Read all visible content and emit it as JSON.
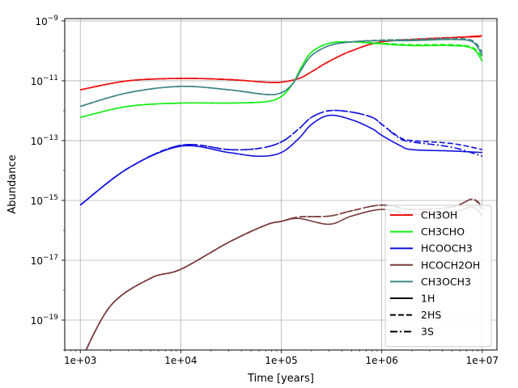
{
  "chart_data": {
    "type": "line",
    "title": "",
    "xlabel": "Time [years]",
    "ylabel": "Abundance",
    "xscale": "log",
    "yscale": "log",
    "xlim": [
      700,
      14000000
    ],
    "ylim": [
      1e-20,
      1.2e-09
    ],
    "grid": true,
    "legend_position": "bottom-right",
    "xticks": [
      {
        "value": 1000,
        "label": "1e+03"
      },
      {
        "value": 10000,
        "label": "1e+04"
      },
      {
        "value": 100000,
        "label": "1e+05"
      },
      {
        "value": 1000000,
        "label": "1e+06"
      },
      {
        "value": 10000000,
        "label": "1e+07"
      }
    ],
    "yticks": [
      {
        "value": 1e-19,
        "base": "10",
        "exp": "−19"
      },
      {
        "value": 1e-17,
        "base": "10",
        "exp": "−17"
      },
      {
        "value": 1e-15,
        "base": "10",
        "exp": "−15"
      },
      {
        "value": 1e-13,
        "base": "10",
        "exp": "−13"
      },
      {
        "value": 1e-11,
        "base": "10",
        "exp": "−11"
      },
      {
        "value": 1e-09,
        "base": "10",
        "exp": "−9"
      }
    ],
    "legend": {
      "species": [
        {
          "name": "CH3OH",
          "color": "#ee1111"
        },
        {
          "name": "CH3CHO",
          "color": "#11ee11"
        },
        {
          "name": "HCOOCH3",
          "color": "#1111dd"
        },
        {
          "name": "HCOCH2OH",
          "color": "#7a3b3b"
        },
        {
          "name": "CH3OCH3",
          "color": "#3d8585"
        }
      ],
      "styles": [
        {
          "name": "1H",
          "dash": "solid"
        },
        {
          "name": "2HS",
          "dash": "dashed"
        },
        {
          "name": "3S",
          "dash": "dashdot"
        }
      ]
    },
    "series": [
      {
        "species": "CH3OH",
        "style": "1H",
        "color": "#ee1111",
        "dash": "solid",
        "x": [
          1000,
          3000,
          10000,
          30000,
          70000,
          100000,
          150000,
          200000,
          300000,
          500000,
          1000000,
          3000000,
          10000000
        ],
        "y": [
          5e-12,
          1e-11,
          1.2e-11,
          1.1e-11,
          9e-12,
          9e-12,
          1.2e-11,
          2e-11,
          4.5e-11,
          1e-10,
          2e-10,
          2.5e-10,
          3.2e-10
        ]
      },
      {
        "species": "CH3OH",
        "style": "2HS",
        "color": "#ee1111",
        "dash": "dashed",
        "x": [
          1000,
          3000,
          10000,
          30000,
          70000,
          100000,
          150000,
          200000,
          300000,
          500000,
          1000000,
          3000000,
          10000000
        ],
        "y": [
          5e-12,
          1e-11,
          1.2e-11,
          1.1e-11,
          9e-12,
          9e-12,
          1.2e-11,
          2e-11,
          4.5e-11,
          1e-10,
          2e-10,
          2.6e-10,
          3e-10
        ]
      },
      {
        "species": "CH3OH",
        "style": "3S",
        "color": "#ee1111",
        "dash": "dashdot",
        "x": [
          1000,
          3000,
          10000,
          30000,
          70000,
          100000,
          150000,
          200000,
          300000,
          500000,
          1000000,
          3000000,
          10000000
        ],
        "y": [
          5e-12,
          1e-11,
          1.2e-11,
          1.1e-11,
          9e-12,
          9e-12,
          1.2e-11,
          2e-11,
          4.5e-11,
          1e-10,
          2e-10,
          2.6e-10,
          3e-10
        ]
      },
      {
        "species": "CH3CHO",
        "style": "1H",
        "color": "#11ee11",
        "dash": "solid",
        "x": [
          1000,
          3000,
          10000,
          30000,
          70000,
          100000,
          130000,
          160000,
          200000,
          300000,
          500000,
          1000000,
          2000000,
          5000000,
          8000000,
          10000000
        ],
        "y": [
          6e-13,
          1.4e-12,
          1.8e-12,
          1.8e-12,
          2e-12,
          3e-12,
          8e-12,
          3e-11,
          9e-11,
          1.8e-10,
          2e-10,
          1.7e-10,
          1.5e-10,
          1.5e-10,
          1.2e-10,
          4.5e-11
        ]
      },
      {
        "species": "CH3CHO",
        "style": "2HS",
        "color": "#11ee11",
        "dash": "dashed",
        "x": [
          1000,
          3000,
          10000,
          30000,
          70000,
          100000,
          130000,
          160000,
          200000,
          300000,
          500000,
          1000000,
          2000000,
          5000000,
          8000000,
          10000000
        ],
        "y": [
          6e-13,
          1.4e-12,
          1.8e-12,
          1.8e-12,
          2e-12,
          3e-12,
          8e-12,
          3e-11,
          9e-11,
          1.8e-10,
          2e-10,
          1.8e-10,
          1.6e-10,
          1.6e-10,
          1.3e-10,
          6e-11
        ]
      },
      {
        "species": "HCOOCH3",
        "style": "1H",
        "color": "#1111dd",
        "dash": "solid",
        "x": [
          1000,
          3000,
          10000,
          30000,
          60000,
          100000,
          150000,
          200000,
          300000,
          500000,
          800000,
          1000000,
          1500000,
          2000000,
          5000000,
          10000000
        ],
        "y": [
          7e-16,
          1.2e-14,
          6.5e-14,
          4e-14,
          3e-14,
          4e-14,
          1.2e-13,
          3.5e-13,
          7e-13,
          5e-13,
          2.5e-13,
          1.5e-13,
          7e-14,
          5e-14,
          4.5e-14,
          4e-14
        ]
      },
      {
        "species": "HCOOCH3",
        "style": "2HS",
        "color": "#1111dd",
        "dash": "dashed",
        "x": [
          1000,
          3000,
          10000,
          30000,
          60000,
          100000,
          150000,
          200000,
          300000,
          500000,
          800000,
          1000000,
          1500000,
          2000000,
          5000000,
          10000000
        ],
        "y": [
          7e-16,
          1.2e-14,
          7e-14,
          5e-14,
          5.5e-14,
          9e-14,
          2.5e-13,
          6e-13,
          1e-12,
          9e-13,
          6e-13,
          3.5e-13,
          1.3e-13,
          1e-13,
          8e-14,
          5e-14
        ]
      },
      {
        "species": "HCOOCH3",
        "style": "3S",
        "color": "#1111dd",
        "dash": "dashdot",
        "x": [
          1000,
          3000,
          10000,
          30000,
          60000,
          100000,
          150000,
          200000,
          300000,
          500000,
          800000,
          1000000,
          1500000,
          2000000,
          5000000,
          10000000
        ],
        "y": [
          7e-16,
          1.2e-14,
          7e-14,
          5e-14,
          5.5e-14,
          9e-14,
          2.5e-13,
          6e-13,
          1e-12,
          9e-13,
          6e-13,
          3.5e-13,
          1.2e-13,
          9e-14,
          6e-14,
          3e-14
        ]
      },
      {
        "species": "HCOCH2OH",
        "style": "1H",
        "color": "#7a3b3b",
        "dash": "solid",
        "x": [
          1000,
          2000,
          5000,
          10000,
          30000,
          70000,
          100000,
          150000,
          300000,
          500000,
          1000000,
          2000000,
          5000000,
          8000000,
          10000000
        ],
        "y": [
          4e-21,
          3e-19,
          2.5e-18,
          5e-18,
          4e-17,
          1.5e-16,
          2e-16,
          2.5e-16,
          1.6e-16,
          3e-16,
          5e-16,
          3.5e-16,
          4e-16,
          6e-16,
          3e-16
        ]
      },
      {
        "species": "HCOCH2OH",
        "style": "2HS",
        "color": "#7a3b3b",
        "dash": "dashed",
        "x": [
          1000,
          2000,
          5000,
          10000,
          30000,
          70000,
          100000,
          150000,
          300000,
          500000,
          1000000,
          2000000,
          5000000,
          8000000,
          10000000
        ],
        "y": [
          4e-21,
          3e-19,
          2.5e-18,
          5e-18,
          4e-17,
          1.5e-16,
          2e-16,
          2.8e-16,
          3e-16,
          4.5e-16,
          7e-16,
          5e-16,
          6e-16,
          1.1e-15,
          5e-16
        ]
      },
      {
        "species": "HCOCH2OH",
        "style": "3S",
        "color": "#7a3b3b",
        "dash": "dashdot",
        "x": [
          1000,
          2000,
          5000,
          10000,
          30000,
          70000,
          100000,
          150000,
          300000,
          500000,
          1000000,
          2000000,
          5000000,
          8000000,
          10000000
        ],
        "y": [
          4e-21,
          3e-19,
          2.5e-18,
          5e-18,
          4e-17,
          1.5e-16,
          2e-16,
          2.8e-16,
          3e-16,
          4.5e-16,
          7e-16,
          5e-16,
          6e-16,
          1.1e-15,
          6e-16
        ]
      },
      {
        "species": "CH3OCH3",
        "style": "1H",
        "color": "#3d8585",
        "dash": "solid",
        "x": [
          1000,
          3000,
          10000,
          30000,
          70000,
          100000,
          130000,
          160000,
          200000,
          300000,
          500000,
          1000000,
          2000000,
          5000000,
          8000000,
          10000000
        ],
        "y": [
          1.4e-12,
          4e-12,
          6.5e-12,
          5e-12,
          3.5e-12,
          4e-12,
          8e-12,
          2.5e-11,
          7e-11,
          1.5e-10,
          2e-10,
          2.2e-10,
          2.2e-10,
          2.4e-10,
          2e-10,
          7e-11
        ]
      },
      {
        "species": "CH3OCH3",
        "style": "2HS",
        "color": "#3d8585",
        "dash": "dashed",
        "x": [
          1000,
          3000,
          10000,
          30000,
          70000,
          100000,
          130000,
          160000,
          200000,
          300000,
          500000,
          1000000,
          2000000,
          5000000,
          8000000,
          10000000
        ],
        "y": [
          1.4e-12,
          4e-12,
          6.5e-12,
          5e-12,
          3.5e-12,
          4e-12,
          8e-12,
          2.5e-11,
          7e-11,
          1.5e-10,
          2e-10,
          2.3e-10,
          2.4e-10,
          2.6e-10,
          2.2e-10,
          9e-11
        ]
      }
    ]
  }
}
